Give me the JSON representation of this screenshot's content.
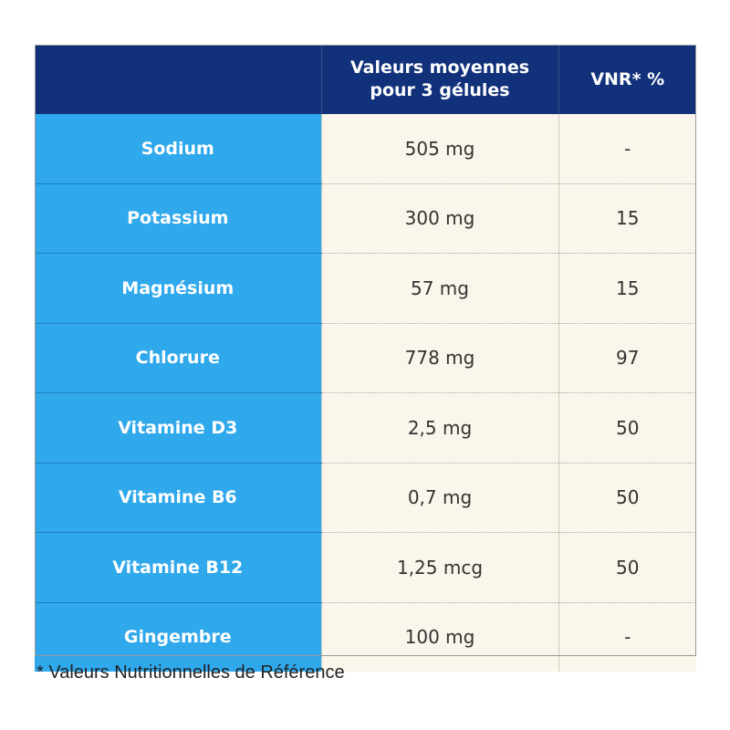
{
  "header": {
    "col1": "",
    "col2_line1": "Valeurs moyennes",
    "col2_line2": "pour 3 gélules",
    "col3": "VNR* %"
  },
  "rows": [
    {
      "name": "Sodium",
      "value": "505 mg",
      "vnr": "-"
    },
    {
      "name": "Potassium",
      "value": "300 mg",
      "vnr": "15"
    },
    {
      "name": "Magnésium",
      "value": "57 mg",
      "vnr": "15"
    },
    {
      "name": "Chlorure",
      "value": "778 mg",
      "vnr": "97"
    },
    {
      "name": "Vitamine D3",
      "value": "2,5 mg",
      "vnr": "50"
    },
    {
      "name": "Vitamine B6",
      "value": "0,7 mg",
      "vnr": "50"
    },
    {
      "name": "Vitamine B12",
      "value": "1,25 mcg",
      "vnr": "50"
    },
    {
      "name": "Gingembre",
      "value": "100 mg",
      "vnr": "-"
    }
  ],
  "footnote": "*  Valeurs Nutritionnelles de Référence",
  "colors": {
    "header": "#11317a",
    "name_column": "#2fa8ec",
    "value_cells": "#faf6eb"
  }
}
